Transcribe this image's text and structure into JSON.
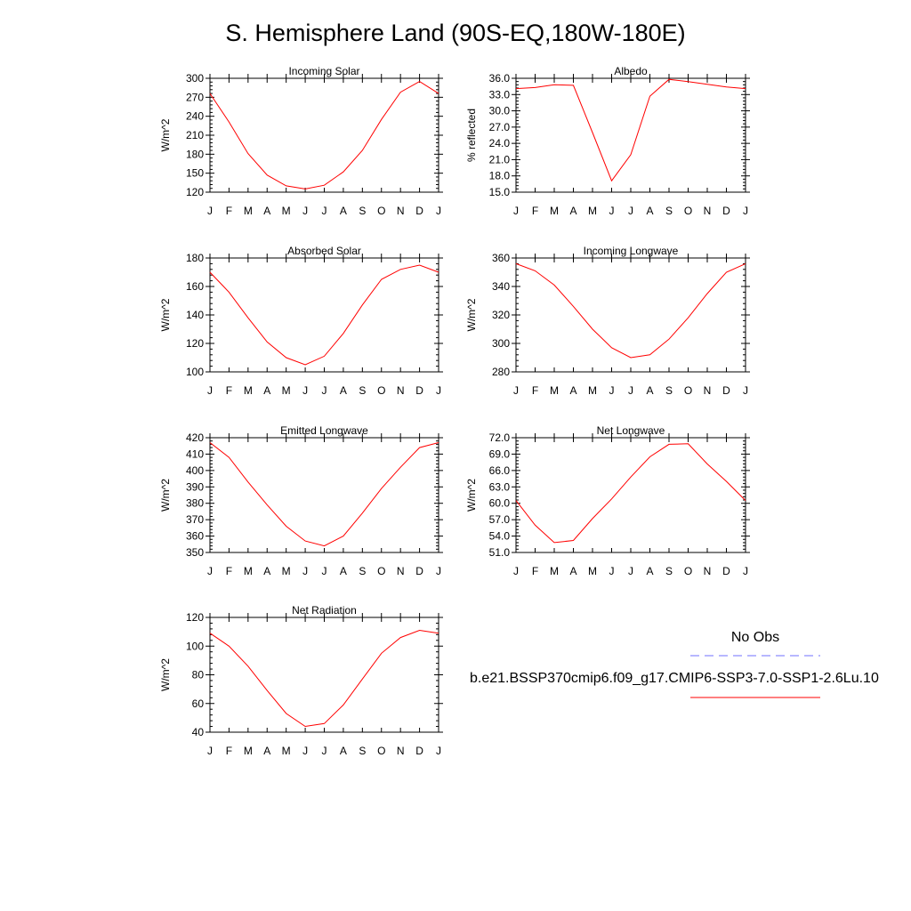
{
  "title": "S. Hemisphere Land (90S-EQ,180W-180E)",
  "colors": {
    "model": "#ff0000",
    "obs": "#7070ff"
  },
  "legend": {
    "obs_label": "No Obs",
    "model_label": "b.e21.BSSP370cmip6.f09_g17.CMIP6-SSP3-7.0-SSP1-2.6Lu.10"
  },
  "chart_data": [
    {
      "type": "line",
      "title": "Incoming Solar",
      "ylabel": "W/m^2",
      "categories": [
        "J",
        "F",
        "M",
        "A",
        "M",
        "J",
        "J",
        "A",
        "S",
        "O",
        "N",
        "D",
        "J"
      ],
      "ylim": [
        120,
        300
      ],
      "yticks": [
        120,
        150,
        180,
        210,
        240,
        270,
        300
      ],
      "ytick_labels": [
        "120",
        "150",
        "180",
        "210",
        "240",
        "270",
        "300"
      ],
      "values": [
        276,
        231,
        181,
        147,
        130,
        125,
        131,
        152,
        186,
        235,
        278,
        295,
        276
      ]
    },
    {
      "type": "line",
      "title": "Albedo",
      "ylabel": "% reflected",
      "categories": [
        "J",
        "F",
        "M",
        "A",
        "M",
        "J",
        "J",
        "A",
        "S",
        "O",
        "N",
        "D",
        "J"
      ],
      "ylim": [
        15,
        36
      ],
      "yticks": [
        15,
        18,
        21,
        24,
        27,
        30,
        33,
        36
      ],
      "ytick_labels": [
        "15.0",
        "18.0",
        "21.0",
        "24.0",
        "27.0",
        "30.0",
        "33.0",
        "36.0"
      ],
      "values": [
        34.1,
        34.3,
        34.8,
        34.7,
        26.0,
        17.1,
        21.9,
        32.7,
        35.8,
        35.4,
        34.9,
        34.4,
        34.1
      ]
    },
    {
      "type": "line",
      "title": "Absorbed Solar",
      "ylabel": "W/m^2",
      "categories": [
        "J",
        "F",
        "M",
        "A",
        "M",
        "J",
        "J",
        "A",
        "S",
        "O",
        "N",
        "D",
        "J"
      ],
      "ylim": [
        100,
        180
      ],
      "yticks": [
        100,
        120,
        140,
        160,
        180
      ],
      "ytick_labels": [
        "100",
        "120",
        "140",
        "160",
        "180"
      ],
      "values": [
        170,
        156,
        138,
        121,
        110,
        105,
        111,
        127,
        147,
        165,
        172,
        175,
        170
      ]
    },
    {
      "type": "line",
      "title": "Incoming Longwave",
      "ylabel": "W/m^2",
      "categories": [
        "J",
        "F",
        "M",
        "A",
        "M",
        "J",
        "J",
        "A",
        "S",
        "O",
        "N",
        "D",
        "J"
      ],
      "ylim": [
        280,
        360
      ],
      "yticks": [
        280,
        300,
        320,
        340,
        360
      ],
      "ytick_labels": [
        "280",
        "300",
        "320",
        "340",
        "360"
      ],
      "values": [
        356,
        351,
        341,
        326,
        310,
        297,
        290,
        292,
        303,
        318,
        335,
        350,
        356
      ]
    },
    {
      "type": "line",
      "title": "Emitted Longwave",
      "ylabel": "W/m^2",
      "categories": [
        "J",
        "F",
        "M",
        "A",
        "M",
        "J",
        "J",
        "A",
        "S",
        "O",
        "N",
        "D",
        "J"
      ],
      "ylim": [
        350,
        420
      ],
      "yticks": [
        350,
        360,
        370,
        380,
        390,
        400,
        410,
        420
      ],
      "ytick_labels": [
        "350",
        "360",
        "370",
        "380",
        "390",
        "400",
        "410",
        "420"
      ],
      "values": [
        417,
        408,
        393,
        379,
        366,
        357,
        354,
        360,
        374,
        389,
        402,
        414,
        417
      ]
    },
    {
      "type": "line",
      "title": "Net Longwave",
      "ylabel": "W/m^2",
      "categories": [
        "J",
        "F",
        "M",
        "A",
        "M",
        "J",
        "J",
        "A",
        "S",
        "O",
        "N",
        "D",
        "J"
      ],
      "ylim": [
        51,
        72
      ],
      "yticks": [
        51,
        54,
        57,
        60,
        63,
        66,
        69,
        72
      ],
      "ytick_labels": [
        "51.0",
        "54.0",
        "57.0",
        "60.0",
        "63.0",
        "66.0",
        "69.0",
        "72.0"
      ],
      "values": [
        60.5,
        56.0,
        52.8,
        53.2,
        57.2,
        60.8,
        64.8,
        68.5,
        70.8,
        70.9,
        67.2,
        64.0,
        60.5
      ]
    },
    {
      "type": "line",
      "title": "Net Radiation",
      "ylabel": "W/m^2",
      "categories": [
        "J",
        "F",
        "M",
        "A",
        "M",
        "J",
        "J",
        "A",
        "S",
        "O",
        "N",
        "D",
        "J"
      ],
      "ylim": [
        40,
        120
      ],
      "yticks": [
        40,
        60,
        80,
        100,
        120
      ],
      "ytick_labels": [
        "40",
        "60",
        "80",
        "100",
        "120"
      ],
      "values": [
        109,
        100,
        86,
        69,
        53,
        44,
        46,
        59,
        77,
        95,
        106,
        111,
        109
      ]
    }
  ]
}
